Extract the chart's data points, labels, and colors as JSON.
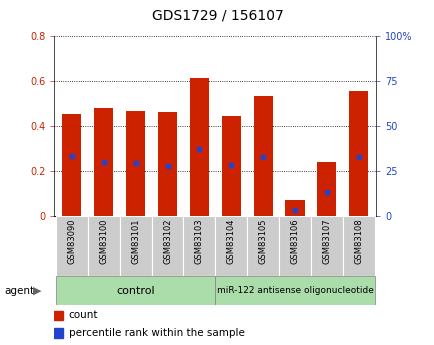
{
  "title": "GDS1729 / 156107",
  "samples": [
    "GSM83090",
    "GSM83100",
    "GSM83101",
    "GSM83102",
    "GSM83103",
    "GSM83104",
    "GSM83105",
    "GSM83106",
    "GSM83107",
    "GSM83108"
  ],
  "count_values": [
    0.455,
    0.48,
    0.465,
    0.46,
    0.615,
    0.445,
    0.535,
    0.07,
    0.238,
    0.555
  ],
  "percentile_values": [
    0.265,
    0.24,
    0.235,
    0.22,
    0.295,
    0.225,
    0.26,
    0.025,
    0.105,
    0.26
  ],
  "ylim_left": [
    0,
    0.8
  ],
  "ylim_right": [
    0,
    100
  ],
  "yticks_left": [
    0,
    0.2,
    0.4,
    0.6,
    0.8
  ],
  "yticks_right": [
    0,
    25,
    50,
    75,
    100
  ],
  "ytick_labels_left": [
    "0",
    "0.2",
    "0.4",
    "0.6",
    "0.8"
  ],
  "ytick_labels_right": [
    "0",
    "25",
    "50",
    "75",
    "100%"
  ],
  "bar_color": "#cc2200",
  "dot_color": "#2244cc",
  "n_control": 5,
  "n_treatment": 5,
  "control_label": "control",
  "treatment_label": "miR-122 antisense oligonucleotide",
  "agent_label": "agent",
  "legend_count": "count",
  "legend_pct": "percentile rank within the sample",
  "bg_color": "#ffffff",
  "plot_bg": "#ffffff",
  "group_bg_color": "#aaddaa",
  "tick_label_bg": "#cccccc",
  "bar_width": 0.6,
  "title_fontsize": 10,
  "axis_fontsize": 7,
  "legend_fontsize": 7.5
}
